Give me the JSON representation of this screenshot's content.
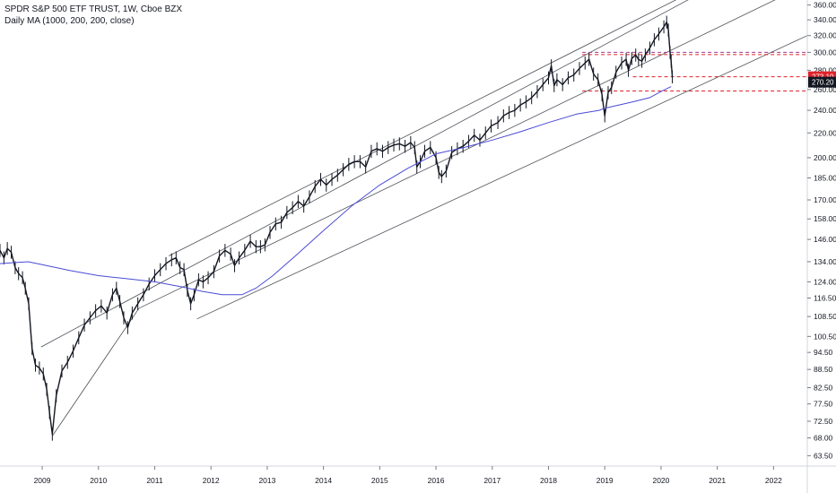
{
  "header": {
    "title": "SPDR S&P 500 ETF TRUST, 1W, Cboe BZX",
    "indicator": "Daily MA (1000, 200, 200, close)"
  },
  "colors": {
    "candle": "#131722",
    "ma": "#4b4bd6",
    "channel": "#131722",
    "level_dashed": "#e0232a",
    "level_purple": "#9b3b8f",
    "tag_red": "#e0232a",
    "tag_dark": "#131722"
  },
  "chart_data": {
    "type": "line",
    "title": "SPDR S&P 500 ETF TRUST, 1W, Cboe BZX",
    "scale": "log",
    "ylim": [
      61.0,
      367.0
    ],
    "xlim": [
      2008.25,
      2022.6
    ],
    "y_ticks": [
      63.5,
      68.0,
      72.5,
      77.5,
      82.5,
      88.5,
      94.5,
      100.5,
      108.5,
      116.5,
      124.0,
      134.0,
      146.0,
      158.0,
      170.0,
      185.0,
      200.0,
      220.0,
      240.0,
      260.0,
      280.0,
      300.0,
      320.0,
      340.0,
      360.0
    ],
    "y_tick_labels": [
      "63.50",
      "68.00",
      "72.50",
      "77.50",
      "82.50",
      "88.50",
      "94.50",
      "100.50",
      "108.50",
      "116.50",
      "124.00",
      "134.00",
      "146.00",
      "158.00",
      "170.00",
      "185.00",
      "200.00",
      "220.00",
      "240.00",
      "260.00",
      "280.00",
      "300.00",
      "320.00",
      "340.00",
      "360.00"
    ],
    "x_ticks": [
      2009,
      2010,
      2011,
      2012,
      2013,
      2014,
      2015,
      2016,
      2017,
      2018,
      2019,
      2020,
      2021,
      2022
    ],
    "x_tick_labels": [
      "2009",
      "2010",
      "2011",
      "2012",
      "2013",
      "2014",
      "2015",
      "2016",
      "2017",
      "2018",
      "2019",
      "2020",
      "2021",
      "2022"
    ],
    "series": [
      {
        "kind": "price",
        "x": [
          2008.25,
          2008.32,
          2008.38,
          2008.45,
          2008.52,
          2008.58,
          2008.65,
          2008.7,
          2008.76,
          2008.82,
          2008.88,
          2008.95,
          2009.02,
          2009.08,
          2009.13,
          2009.18,
          2009.25,
          2009.35,
          2009.45,
          2009.55,
          2009.65,
          2009.75,
          2009.85,
          2009.95,
          2010.05,
          2010.15,
          2010.25,
          2010.32,
          2010.38,
          2010.45,
          2010.52,
          2010.6,
          2010.7,
          2010.8,
          2010.9,
          2011.0,
          2011.1,
          2011.2,
          2011.3,
          2011.38,
          2011.45,
          2011.52,
          2011.58,
          2011.64,
          2011.7,
          2011.78,
          2011.86,
          2011.95,
          2012.05,
          2012.15,
          2012.25,
          2012.35,
          2012.42,
          2012.5,
          2012.6,
          2012.7,
          2012.8,
          2012.88,
          2012.96,
          2013.05,
          2013.15,
          2013.25,
          2013.35,
          2013.45,
          2013.55,
          2013.65,
          2013.75,
          2013.85,
          2013.95,
          2014.05,
          2014.15,
          2014.25,
          2014.35,
          2014.45,
          2014.55,
          2014.65,
          2014.75,
          2014.85,
          2014.95,
          2015.05,
          2015.15,
          2015.25,
          2015.35,
          2015.45,
          2015.55,
          2015.62,
          2015.66,
          2015.72,
          2015.8,
          2015.9,
          2016.0,
          2016.05,
          2016.1,
          2016.18,
          2016.28,
          2016.38,
          2016.48,
          2016.58,
          2016.68,
          2016.78,
          2016.88,
          2016.98,
          2017.1,
          2017.2,
          2017.3,
          2017.4,
          2017.5,
          2017.6,
          2017.7,
          2017.8,
          2017.9,
          2018.0,
          2018.05,
          2018.1,
          2018.15,
          2018.25,
          2018.35,
          2018.45,
          2018.55,
          2018.65,
          2018.72,
          2018.8,
          2018.88,
          2018.95,
          2019.0,
          2019.06,
          2019.12,
          2019.2,
          2019.3,
          2019.38,
          2019.42,
          2019.48,
          2019.55,
          2019.6,
          2019.66,
          2019.72,
          2019.8,
          2019.88,
          2019.96,
          2020.05,
          2020.1,
          2020.13,
          2020.16,
          2020.18,
          2020.2
        ],
        "values": [
          140.0,
          136.0,
          141.0,
          139.0,
          131.0,
          128.0,
          126.0,
          121.0,
          114.0,
          96.0,
          90.0,
          89.0,
          87.0,
          82.0,
          75.0,
          69.0,
          80.0,
          88.0,
          91.0,
          95.0,
          100.0,
          105.0,
          108.0,
          111.0,
          113.0,
          110.0,
          118.0,
          121.0,
          115.0,
          108.0,
          104.0,
          110.0,
          114.0,
          118.0,
          123.0,
          127.0,
          130.0,
          133.0,
          135.0,
          136.0,
          131.0,
          130.0,
          120.0,
          114.0,
          118.0,
          125.0,
          124.0,
          126.0,
          129.0,
          137.0,
          140.0,
          138.0,
          132.0,
          136.0,
          140.0,
          145.0,
          142.0,
          142.0,
          143.0,
          150.0,
          155.0,
          156.0,
          162.0,
          165.0,
          169.0,
          166.0,
          172.0,
          179.0,
          184.0,
          180.0,
          184.0,
          187.0,
          191.0,
          195.0,
          197.0,
          197.0,
          193.0,
          205.0,
          207.0,
          205.0,
          208.0,
          210.0,
          211.0,
          209.0,
          212.0,
          208.0,
          193.0,
          197.0,
          205.0,
          208.0,
          200.0,
          189.0,
          186.0,
          190.0,
          204.0,
          207.0,
          209.0,
          213.0,
          218.0,
          214.0,
          220.0,
          226.0,
          229.0,
          235.0,
          238.0,
          240.0,
          245.0,
          248.0,
          252.0,
          258.0,
          265.0,
          272.0,
          285.0,
          264.0,
          270.0,
          265.0,
          272.0,
          275.0,
          282.0,
          288.0,
          292.0,
          276.0,
          270.0,
          255.0,
          235.0,
          257.0,
          262.0,
          278.0,
          288.0,
          292.0,
          280.0,
          293.0,
          297.0,
          292.0,
          290.0,
          297.0,
          305.0,
          315.0,
          322.0,
          331.0,
          337.0,
          327.0,
          300.0,
          290.0,
          273.1
        ]
      },
      {
        "kind": "ma",
        "x": [
          2008.25,
          2008.5,
          2008.75,
          2009.0,
          2009.5,
          2010.0,
          2010.5,
          2011.0,
          2011.5,
          2011.85,
          2012.2,
          2012.55,
          2012.8,
          2013.1,
          2013.5,
          2014.0,
          2014.5,
          2015.0,
          2015.5,
          2016.0,
          2016.5,
          2017.0,
          2017.5,
          2018.0,
          2018.5,
          2018.9,
          2019.0,
          2019.5,
          2019.8,
          2020.0,
          2020.18
        ],
        "values": [
          133.0,
          133.5,
          134.0,
          132.5,
          129.5,
          127.0,
          125.5,
          124.0,
          121.5,
          119.5,
          118.0,
          118.0,
          121.0,
          127.0,
          137.0,
          151.0,
          166.0,
          180.0,
          192.0,
          203.0,
          208.0,
          214.0,
          221.0,
          229.0,
          236.5,
          240.0,
          242.0,
          248.0,
          252.0,
          258.0,
          263.0
        ]
      }
    ],
    "trendlines": [
      {
        "x1": 2009.18,
        "y1": 68.5,
        "x2": 2010.72,
        "y2": 112.0
      },
      {
        "x1": 2008.98,
        "y1": 96.5,
        "x2": 2021.84,
        "y2": 430.0
      },
      {
        "x1": 2011.25,
        "y1": 137.0,
        "x2": 2021.45,
        "y2": 418.0
      },
      {
        "x1": 2011.75,
        "y1": 107.5,
        "x2": 2022.6,
        "y2": 320.0
      },
      {
        "x1": 2010.72,
        "y1": 112.0,
        "x2": 2022.6,
        "y2": 390.0
      }
    ],
    "horizontal_levels": [
      {
        "x1": 2018.6,
        "x2": 2022.6,
        "y": 300.0,
        "style": "dashed",
        "color": "purple"
      },
      {
        "x1": 2018.6,
        "x2": 2022.6,
        "y": 297.5,
        "style": "dashed",
        "color": "red"
      },
      {
        "x1": 2019.5,
        "x2": 2022.6,
        "y": 273.1,
        "style": "dashed",
        "color": "red"
      },
      {
        "x1": 2018.6,
        "x2": 2022.6,
        "y": 258.5,
        "style": "dashed",
        "color": "red"
      }
    ],
    "price_tags": [
      {
        "label": "273.10",
        "y": 273.1,
        "bg": "tag_red"
      },
      {
        "label": "270.20",
        "y": 267.5,
        "bg": "tag_dark"
      }
    ]
  }
}
